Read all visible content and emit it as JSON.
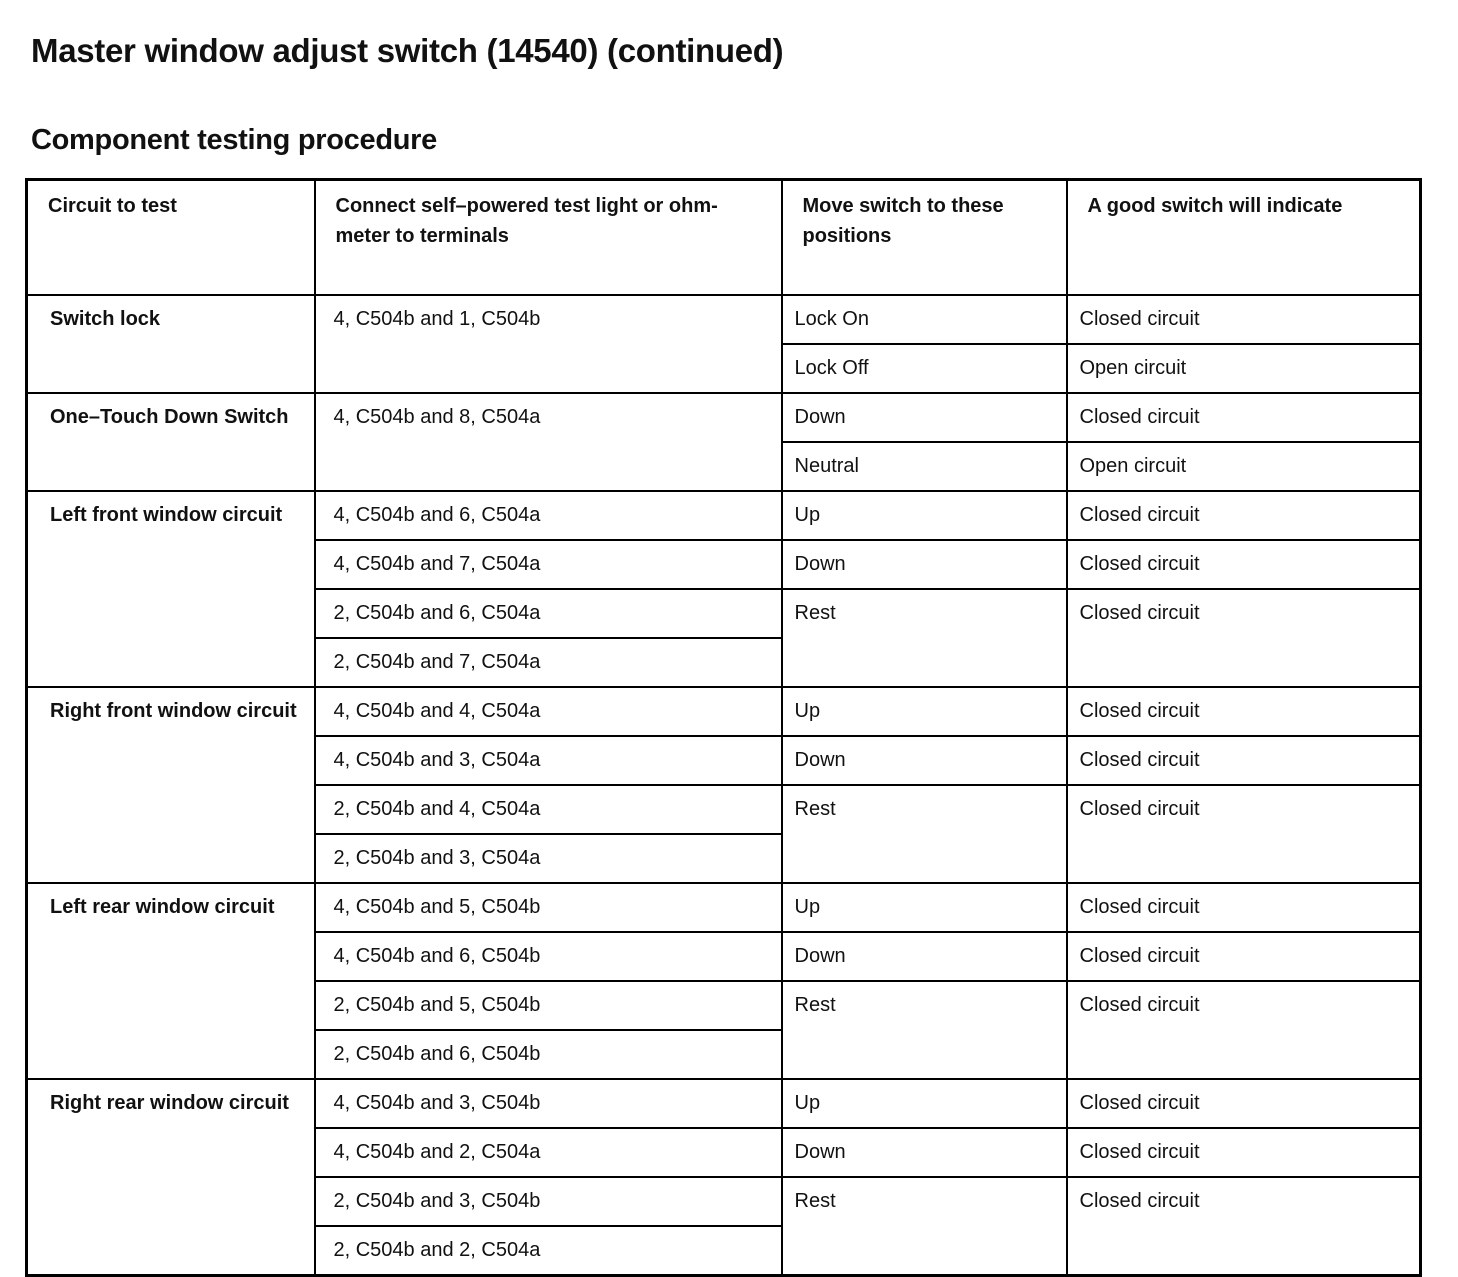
{
  "title": "Master window adjust switch (14540) (continued)",
  "subtitle": "Component testing procedure",
  "table": {
    "headers": [
      "Circuit to test",
      "Connect self–powered test light or ohm-meter to terminals",
      "Move switch to these positions",
      "A good switch will indicate"
    ],
    "groups": [
      {
        "circuit": "Switch lock",
        "terminals": [
          "4, C504b and 1, C504b"
        ],
        "results": [
          {
            "position": "Lock On",
            "indicate": "Closed circuit"
          },
          {
            "position": "Lock Off",
            "indicate": "Open circuit"
          }
        ]
      },
      {
        "circuit": "One–Touch Down Switch",
        "terminals": [
          "4, C504b and 8, C504a"
        ],
        "results": [
          {
            "position": "Down",
            "indicate": "Closed circuit"
          },
          {
            "position": "Neutral",
            "indicate": "Open circuit"
          }
        ]
      },
      {
        "circuit": "Left front window circuit",
        "terminals": [
          "4, C504b and 6, C504a",
          "4, C504b and 7, C504a",
          "2, C504b and 6, C504a",
          "2, C504b and 7, C504a"
        ],
        "results": [
          {
            "position": "Up",
            "indicate": "Closed circuit"
          },
          {
            "position": "Down",
            "indicate": "Closed circuit"
          },
          {
            "position": "Rest",
            "indicate": "Closed circuit"
          }
        ]
      },
      {
        "circuit": "Right front window circuit",
        "terminals": [
          "4, C504b and 4, C504a",
          "4, C504b and 3, C504a",
          "2, C504b and 4, C504a",
          "2, C504b and 3, C504a"
        ],
        "results": [
          {
            "position": "Up",
            "indicate": "Closed circuit"
          },
          {
            "position": "Down",
            "indicate": "Closed circuit"
          },
          {
            "position": "Rest",
            "indicate": "Closed circuit"
          }
        ]
      },
      {
        "circuit": "Left rear window circuit",
        "terminals": [
          "4, C504b and 5, C504b",
          "4, C504b and 6, C504b",
          "2, C504b and 5, C504b",
          "2, C504b and 6, C504b"
        ],
        "results": [
          {
            "position": "Up",
            "indicate": "Closed circuit"
          },
          {
            "position": "Down",
            "indicate": "Closed circuit"
          },
          {
            "position": "Rest",
            "indicate": "Closed circuit"
          }
        ]
      },
      {
        "circuit": "Right rear window circuit",
        "terminals": [
          "4, C504b and 3, C504b",
          "4, C504b and 2, C504a",
          "2, C504b and 3, C504b",
          "2, C504b and 2, C504a"
        ],
        "results": [
          {
            "position": "Up",
            "indicate": "Closed circuit"
          },
          {
            "position": "Down",
            "indicate": "Closed circuit"
          },
          {
            "position": "Rest",
            "indicate": "Closed circuit"
          }
        ]
      }
    ]
  }
}
